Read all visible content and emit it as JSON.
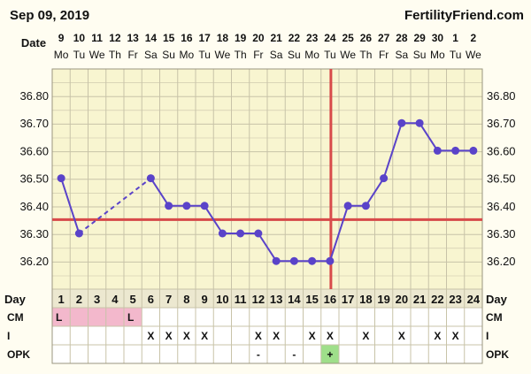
{
  "header": {
    "date": "Sep 09, 2019",
    "brand": "FertilityFriend.com"
  },
  "colors": {
    "background": "#fffdf1",
    "grid_fill": "#f8f5d0",
    "grid_line": "#c8c3a8",
    "series": "#5a43c9",
    "coverline": "#d84a4a",
    "cm_highlight": "#f3b8cc",
    "opk_positive": "#9fdf8a"
  },
  "chart_data": {
    "type": "line",
    "date_label": "Date",
    "day_label": "Day",
    "dates": [
      "9",
      "10",
      "11",
      "12",
      "13",
      "14",
      "15",
      "16",
      "17",
      "18",
      "19",
      "20",
      "21",
      "22",
      "23",
      "24",
      "25",
      "26",
      "27",
      "28",
      "29",
      "30",
      "1",
      "2"
    ],
    "weekdays": [
      "Mo",
      "Tu",
      "We",
      "Th",
      "Fr",
      "Sa",
      "Su",
      "Mo",
      "Tu",
      "We",
      "Th",
      "Fr",
      "Sa",
      "Su",
      "Mo",
      "Tu",
      "We",
      "Th",
      "Fr",
      "Sa",
      "Su",
      "Mo",
      "Tu",
      "We"
    ],
    "days": [
      "1",
      "2",
      "3",
      "4",
      "5",
      "6",
      "7",
      "8",
      "9",
      "10",
      "11",
      "12",
      "13",
      "14",
      "15",
      "16",
      "17",
      "18",
      "19",
      "20",
      "21",
      "22",
      "23",
      "24"
    ],
    "y_ticks": [
      "36.80",
      "36.70",
      "36.60",
      "36.50",
      "36.40",
      "36.30",
      "36.20"
    ],
    "ylim": [
      36.1,
      36.85
    ],
    "temperatures": [
      36.5,
      36.3,
      null,
      null,
      null,
      36.5,
      36.4,
      36.4,
      36.4,
      36.3,
      36.3,
      36.3,
      36.2,
      36.2,
      36.2,
      36.2,
      36.4,
      36.4,
      36.5,
      36.7,
      36.7,
      36.6,
      36.6,
      36.6
    ],
    "coverline": 36.35,
    "ovulation_day": 16,
    "rows": [
      {
        "label": "CM",
        "values": [
          "L",
          "",
          "",
          "",
          "L",
          "",
          "",
          "",
          "",
          "",
          "",
          "",
          "",
          "",
          "",
          "",
          "",
          "",
          "",
          "",
          "",
          "",
          "",
          ""
        ],
        "highlight_days": [
          1,
          2,
          3,
          4,
          5
        ]
      },
      {
        "label": "I",
        "values": [
          "",
          "",
          "",
          "",
          "",
          "X",
          "X",
          "X",
          "X",
          "",
          "",
          "X",
          "X",
          "",
          "X",
          "X",
          "",
          "X",
          "",
          "X",
          "",
          "X",
          "X",
          ""
        ],
        "highlight_days": []
      },
      {
        "label": "OPK",
        "values": [
          "",
          "",
          "",
          "",
          "",
          "",
          "",
          "",
          "",
          "",
          "",
          "-",
          "",
          "-",
          "",
          "+",
          "",
          "",
          "",
          "",
          "",
          "",
          "",
          ""
        ],
        "highlight_days": [
          16
        ]
      }
    ]
  }
}
